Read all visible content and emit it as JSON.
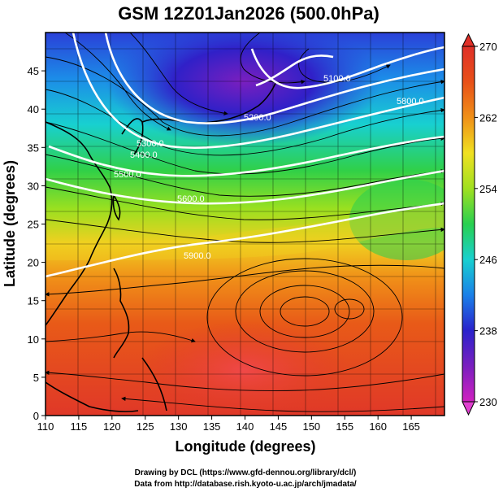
{
  "title": "GSM 12Z01Jan2026 (500.0hPa)",
  "x_axis": {
    "label": "Longitude (degrees)",
    "ticks": [
      "110",
      "115",
      "120",
      "125",
      "130",
      "135",
      "140",
      "145",
      "150",
      "155",
      "160",
      "165"
    ],
    "range": [
      110,
      170
    ]
  },
  "y_axis": {
    "label": "Latitude (degrees)",
    "ticks": [
      "0",
      "5",
      "10",
      "15",
      "20",
      "25",
      "30",
      "35",
      "40",
      "45"
    ],
    "range": [
      0,
      50
    ]
  },
  "colorbar": {
    "ticks": [
      "230",
      "238",
      "246",
      "254",
      "262",
      "270"
    ],
    "range": [
      230,
      270
    ],
    "colors": [
      "#d020c0",
      "#7a1fbf",
      "#2a22cc",
      "#1a80e8",
      "#18d0d0",
      "#28d050",
      "#a0e020",
      "#f0e020",
      "#f09018",
      "#e85018",
      "#e03028"
    ]
  },
  "contours": [
    {
      "label": "5100.0"
    },
    {
      "label": "5200.0"
    },
    {
      "label": "5300.0"
    },
    {
      "label": "5400.0"
    },
    {
      "label": "5500.0"
    },
    {
      "label": "5600.0"
    },
    {
      "label": "5800.0"
    },
    {
      "label": "5900.0"
    }
  ],
  "footer": {
    "line1": "Drawing by DCL (https://www.gfd-dennou.org/library/dcl/)",
    "line2": "Data from http://database.rish.kyoto-u.ac.jp/arch/jmadata/"
  }
}
